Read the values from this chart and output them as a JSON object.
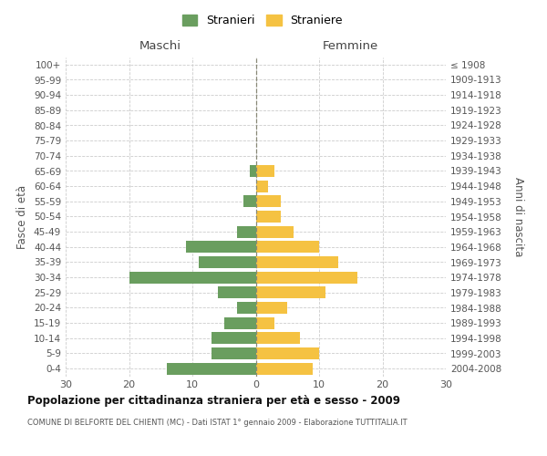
{
  "age_groups": [
    "100+",
    "95-99",
    "90-94",
    "85-89",
    "80-84",
    "75-79",
    "70-74",
    "65-69",
    "60-64",
    "55-59",
    "50-54",
    "45-49",
    "40-44",
    "35-39",
    "30-34",
    "25-29",
    "20-24",
    "15-19",
    "10-14",
    "5-9",
    "0-4"
  ],
  "birth_years": [
    "≤ 1908",
    "1909-1913",
    "1914-1918",
    "1919-1923",
    "1924-1928",
    "1929-1933",
    "1934-1938",
    "1939-1943",
    "1944-1948",
    "1949-1953",
    "1954-1958",
    "1959-1963",
    "1964-1968",
    "1969-1973",
    "1974-1978",
    "1979-1983",
    "1984-1988",
    "1989-1993",
    "1994-1998",
    "1999-2003",
    "2004-2008"
  ],
  "males": [
    0,
    0,
    0,
    0,
    0,
    0,
    0,
    1,
    0,
    2,
    0,
    3,
    11,
    9,
    20,
    6,
    3,
    5,
    7,
    7,
    14
  ],
  "females": [
    0,
    0,
    0,
    0,
    0,
    0,
    0,
    3,
    2,
    4,
    4,
    6,
    10,
    13,
    16,
    11,
    5,
    3,
    7,
    10,
    9
  ],
  "male_color": "#6a9e5f",
  "female_color": "#f5c242",
  "center_line_color": "#888877",
  "grid_color": "#cccccc",
  "bg_color": "#ffffff",
  "title": "Popolazione per cittadinanza straniera per età e sesso - 2009",
  "subtitle": "COMUNE DI BELFORTE DEL CHIENTI (MC) - Dati ISTAT 1° gennaio 2009 - Elaborazione TUTTITALIA.IT",
  "xlabel_left": "Maschi",
  "xlabel_right": "Femmine",
  "ylabel_left": "Fasce di età",
  "ylabel_right": "Anni di nascita",
  "legend_males": "Stranieri",
  "legend_females": "Straniere",
  "xlim": 30,
  "xticks": [
    -30,
    -20,
    -10,
    0,
    10,
    20,
    30
  ]
}
